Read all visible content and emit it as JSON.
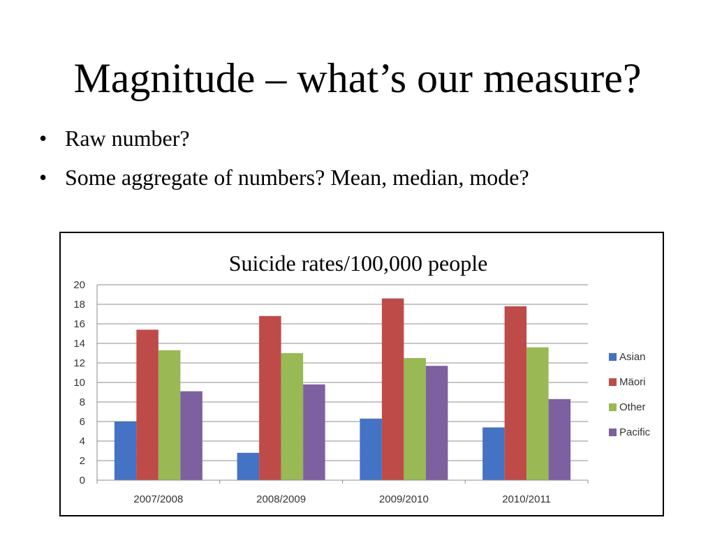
{
  "slide": {
    "title": "Magnitude – what’s our measure?",
    "bullets": [
      "Raw number?",
      "Some aggregate of numbers? Mean, median, mode?"
    ]
  },
  "chart_data": {
    "type": "bar",
    "title": "Suicide rates/100,000 people",
    "xlabel": "",
    "ylabel": "",
    "categories": [
      "2007/2008",
      "2008/2009",
      "2009/2010",
      "2010/2011"
    ],
    "ylim": [
      0,
      20
    ],
    "yticks": [
      0,
      2,
      4,
      6,
      8,
      10,
      12,
      14,
      16,
      18,
      20
    ],
    "grid": true,
    "legend": "right",
    "series": [
      {
        "name": "Asian",
        "color": "#4472C4",
        "values": [
          6.0,
          2.8,
          6.3,
          5.4
        ]
      },
      {
        "name": "Mäori",
        "color": "#BE4B48",
        "values": [
          15.4,
          16.8,
          18.6,
          17.8
        ]
      },
      {
        "name": "Other",
        "color": "#98B954",
        "values": [
          13.3,
          13.0,
          12.5,
          13.6
        ]
      },
      {
        "name": "Pacific",
        "color": "#7D60A0",
        "values": [
          9.1,
          9.8,
          11.7,
          8.3
        ]
      }
    ]
  }
}
